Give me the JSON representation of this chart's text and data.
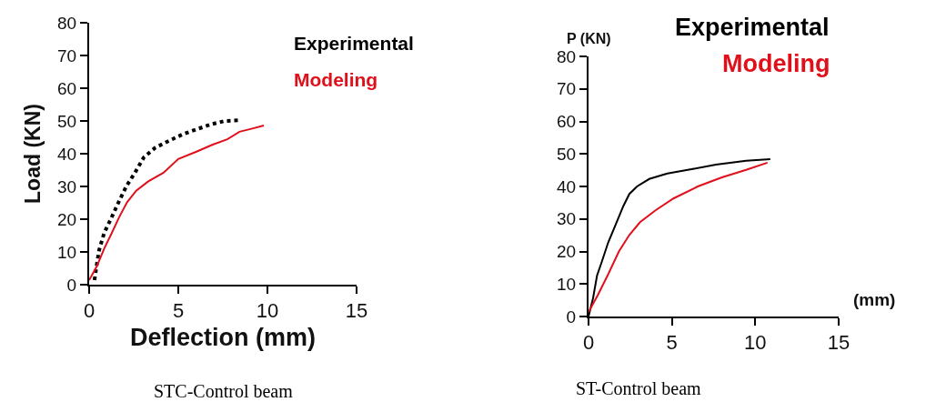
{
  "chart_data": [
    {
      "type": "line",
      "xlabel": "Deflection (mm)",
      "ylabel": "Load (KN)",
      "annotations": [
        "STC-Control beam"
      ],
      "xlim": [
        0,
        15
      ],
      "ylim": [
        0,
        80
      ],
      "xticks": [
        0,
        5,
        10,
        15
      ],
      "yticks": [
        0,
        10,
        20,
        30,
        40,
        50,
        60,
        70,
        80
      ],
      "grid": false,
      "legend": "top right",
      "marker": "none",
      "series": [
        {
          "name": "Experimental",
          "color": "#000000",
          "line_style": "dotted",
          "x": [
            0.3,
            0.43,
            0.56,
            0.85,
            1.24,
            1.67,
            2.1,
            2.57,
            3.07,
            3.7,
            4.57,
            5.28,
            6.1,
            6.87,
            7.6,
            8.43
          ],
          "values": [
            1.4,
            6.2,
            10.6,
            15.9,
            20.3,
            25.4,
            30.2,
            34.2,
            38.9,
            41.8,
            44.2,
            46,
            47.6,
            49,
            50,
            50.2
          ]
        },
        {
          "name": "Modeling",
          "color": "#e0101a",
          "line_style": "solid",
          "x": [
            0,
            0.43,
            0.85,
            1.28,
            1.7,
            2.13,
            2.64,
            3.3,
            4.17,
            5.0,
            6.05,
            6.9,
            7.75,
            8.43,
            9.1,
            9.8
          ],
          "values": [
            1.4,
            5.6,
            11.1,
            15.9,
            20.8,
            25.2,
            28.7,
            31.5,
            34.2,
            38.4,
            40.7,
            42.7,
            44.4,
            46.7,
            47.6,
            48.6
          ]
        }
      ]
    },
    {
      "type": "line",
      "xlabel": "(mm)",
      "ylabel": "P (KN)",
      "annotations": [
        "ST-Control beam"
      ],
      "xlim": [
        0,
        15
      ],
      "ylim": [
        0,
        80
      ],
      "xticks": [
        0,
        5,
        10,
        15
      ],
      "yticks": [
        0,
        10,
        20,
        30,
        40,
        50,
        60,
        70,
        80
      ],
      "grid": false,
      "legend": "top right",
      "marker": "none",
      "line_style": "solid",
      "series": [
        {
          "name": "Experimental",
          "color": "#000000",
          "x": [
            0,
            0.27,
            0.51,
            0.82,
            1.18,
            1.64,
            2.09,
            2.45,
            2.91,
            3.64,
            4.73,
            6.18,
            7.64,
            9.45,
            10.9
          ],
          "values": [
            0,
            5.6,
            12.6,
            17.2,
            22.8,
            28.4,
            34,
            37.7,
            40,
            42.3,
            44,
            45.3,
            46.7,
            47.9,
            48.4
          ]
        },
        {
          "name": "Modeling",
          "color": "#e0101a",
          "x": [
            0,
            0.55,
            1.18,
            1.82,
            2.45,
            3.09,
            4,
            5.09,
            6.55,
            8,
            9.45,
            10.73
          ],
          "values": [
            1.4,
            6.5,
            13,
            20,
            25.1,
            29,
            32.6,
            36.3,
            40,
            42.8,
            45.1,
            47.3
          ]
        }
      ]
    }
  ]
}
